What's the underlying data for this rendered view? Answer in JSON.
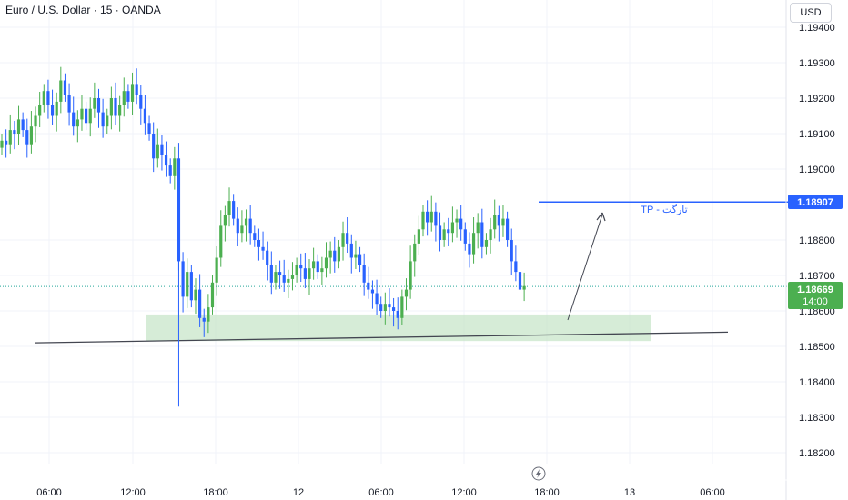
{
  "header": {
    "title": "Euro / U.S. Dollar · 15 · OANDA"
  },
  "currency_button": "USD",
  "annotation": {
    "tp_label": "TP - تارگت"
  },
  "price_tags": {
    "target": "1.18907",
    "current": "1.18669",
    "countdown": "14:00"
  },
  "colors": {
    "up": "#4caf50",
    "down": "#2962ff",
    "target_line": "#2962ff",
    "zone_fill": "#c8e6c9",
    "current_line": "#26a69a",
    "trend_line": "#434651"
  },
  "icons": {
    "replay": "lightning-bolt-icon"
  },
  "chart_data": {
    "type": "candlestick",
    "ylim": [
      1.1815,
      1.1945
    ],
    "y_ticks": [
      "1.19400",
      "1.19300",
      "1.19200",
      "1.19100",
      "1.19000",
      "1.18800",
      "1.18700",
      "1.18600",
      "1.18500",
      "1.18400",
      "1.18300",
      "1.18200"
    ],
    "x_ticks": [
      "06:00",
      "12:00",
      "18:00",
      "12",
      "06:00",
      "12:00",
      "18:00",
      "13",
      "06:00"
    ],
    "target_price": 1.18907,
    "current_price": 1.18669,
    "zone": {
      "low": 1.18515,
      "high": 1.1859
    },
    "support_line": {
      "start": 1.1851,
      "end": 1.1854
    },
    "closes": [
      1.1908,
      1.1907,
      1.1911,
      1.191,
      1.1914,
      1.1911,
      1.1907,
      1.1912,
      1.1915,
      1.1918,
      1.1922,
      1.1918,
      1.1915,
      1.1919,
      1.1925,
      1.1921,
      1.1916,
      1.1912,
      1.1914,
      1.1917,
      1.1913,
      1.1917,
      1.192,
      1.1916,
      1.1912,
      1.1915,
      1.192,
      1.1915,
      1.1918,
      1.1922,
      1.1919,
      1.1924,
      1.1921,
      1.1917,
      1.1913,
      1.191,
      1.1903,
      1.1907,
      1.1904,
      1.1901,
      1.1898,
      1.1903,
      1.1874,
      1.1864,
      1.1871,
      1.1863,
      1.1866,
      1.1858,
      1.1857,
      1.1861,
      1.1868,
      1.1875,
      1.1884,
      1.1887,
      1.1891,
      1.1886,
      1.1882,
      1.1884,
      1.1886,
      1.1882,
      1.188,
      1.1878,
      1.1877,
      1.1873,
      1.1868,
      1.1871,
      1.187,
      1.1868,
      1.1869,
      1.187,
      1.1873,
      1.1872,
      1.1869,
      1.1872,
      1.1874,
      1.1871,
      1.1872,
      1.1875,
      1.1877,
      1.1874,
      1.1878,
      1.1882,
      1.1879,
      1.1875,
      1.1876,
      1.1873,
      1.1868,
      1.1866,
      1.1865,
      1.1862,
      1.186,
      1.1862,
      1.1861,
      1.186,
      1.1858,
      1.1864,
      1.1866,
      1.1874,
      1.1879,
      1.1883,
      1.1888,
      1.1885,
      1.1888,
      1.1884,
      1.188,
      1.1883,
      1.1882,
      1.1885,
      1.1886,
      1.1883,
      1.1879,
      1.1876,
      1.1882,
      1.1885,
      1.1878,
      1.188,
      1.1883,
      1.1887,
      1.1884,
      1.1886,
      1.188,
      1.1874,
      1.1871,
      1.1866,
      1.1867
    ]
  }
}
